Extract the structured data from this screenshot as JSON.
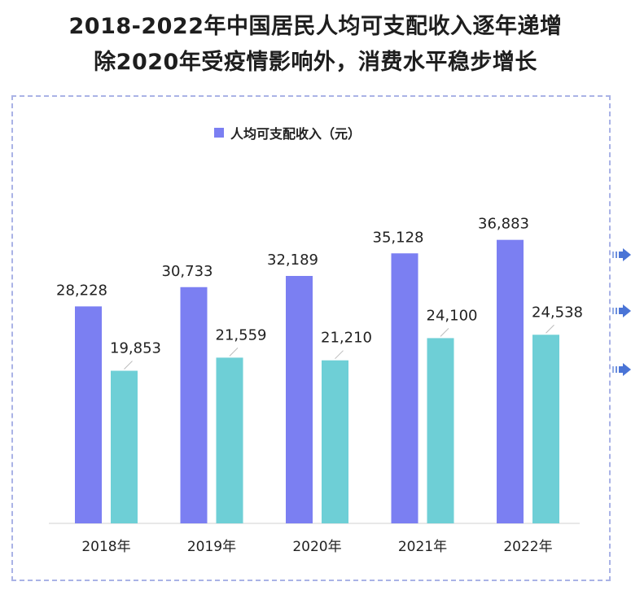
{
  "title_lines": [
    "2018-2022年中国居民人均可支配收入逐年递增",
    "除2020年受疫情影响外，消费水平稳步增长"
  ],
  "colors": {
    "series1": "#7b7ff2",
    "series2": "#6ecfd6",
    "frame": "#aab3e6",
    "arrow": "#4a74d6"
  },
  "chart_data": {
    "type": "bar",
    "categories": [
      "2018年",
      "2019年",
      "2020年",
      "2021年",
      "2022年"
    ],
    "series": [
      {
        "name": "人均可支配收入（元）",
        "values": [
          28228,
          30733,
          32189,
          35128,
          36883
        ],
        "labels": [
          "28,228",
          "30,733",
          "32,189",
          "35,128",
          "36,883"
        ]
      },
      {
        "name": "",
        "values": [
          19853,
          21559,
          21210,
          24100,
          24538
        ],
        "labels": [
          "19,853",
          "21,559",
          "21,210",
          "24,100",
          "24,538"
        ]
      }
    ],
    "title": "",
    "xlabel": "",
    "ylabel": "",
    "legend": "top-center",
    "grid": false
  }
}
